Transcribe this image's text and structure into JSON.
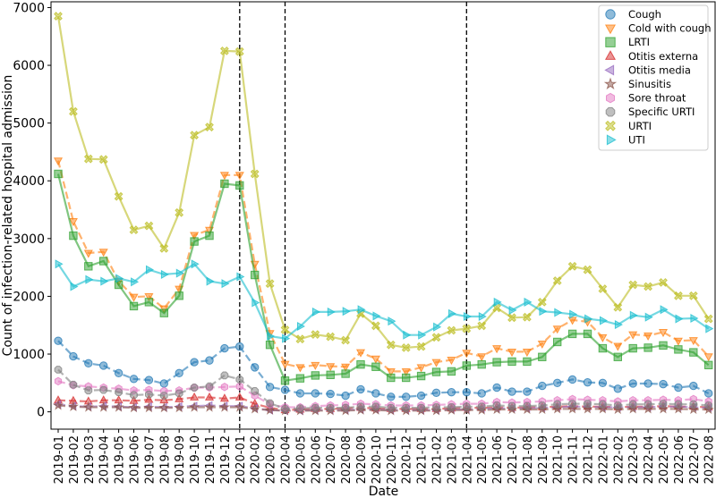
{
  "chart_data": {
    "type": "line",
    "xlabel": "Date",
    "ylabel": "Count of infection-related hospital admission",
    "ylim": [
      -300,
      7100
    ],
    "yticks": [
      0,
      1000,
      2000,
      3000,
      4000,
      5000,
      6000,
      7000
    ],
    "grid": false,
    "legend_position": "top-right",
    "x": [
      "2019-01",
      "2019-02",
      "2019-03",
      "2019-04",
      "2019-05",
      "2019-06",
      "2019-07",
      "2019-08",
      "2019-09",
      "2019-10",
      "2019-11",
      "2019-12",
      "2020-01",
      "2020-02",
      "2020-03",
      "2020-04",
      "2020-05",
      "2020-06",
      "2020-07",
      "2020-08",
      "2020-09",
      "2020-10",
      "2020-11",
      "2020-12",
      "2021-01",
      "2021-02",
      "2021-03",
      "2021-04",
      "2021-05",
      "2021-06",
      "2021-07",
      "2021-08",
      "2021-09",
      "2021-10",
      "2021-11",
      "2021-12",
      "2022-01",
      "2022-02",
      "2022-03",
      "2022-04",
      "2022-05",
      "2022-06",
      "2022-07",
      "2022-08"
    ],
    "vlines": [
      "2020-01",
      "2020-04",
      "2021-04"
    ],
    "series": [
      {
        "name": "Cough",
        "color": "#1f77b4",
        "marker": "circle",
        "dashed": true,
        "values": [
          1230,
          960,
          840,
          800,
          670,
          570,
          550,
          490,
          670,
          860,
          890,
          1100,
          1130,
          770,
          430,
          380,
          320,
          320,
          310,
          280,
          390,
          320,
          260,
          260,
          280,
          330,
          340,
          340,
          320,
          420,
          350,
          350,
          450,
          500,
          560,
          510,
          500,
          400,
          490,
          490,
          480,
          420,
          450,
          320
        ]
      },
      {
        "name": "Cold with cough",
        "color": "#ff7f0e",
        "marker": "triangle-down",
        "dashed": true,
        "values": [
          4350,
          3300,
          2750,
          2770,
          2260,
          1990,
          2000,
          1790,
          2130,
          3060,
          3150,
          4100,
          4100,
          2560,
          1360,
          830,
          770,
          810,
          790,
          780,
          1030,
          920,
          700,
          700,
          770,
          860,
          900,
          1020,
          960,
          1100,
          1040,
          1040,
          1180,
          1440,
          1590,
          1560,
          1290,
          1140,
          1340,
          1320,
          1380,
          1230,
          1240,
          960
        ]
      },
      {
        "name": "LRTI",
        "color": "#2ca02c",
        "marker": "square",
        "dashed": false,
        "values": [
          4120,
          3050,
          2520,
          2610,
          2200,
          1830,
          1900,
          1710,
          2010,
          2950,
          3050,
          3950,
          3920,
          2370,
          1160,
          540,
          580,
          630,
          640,
          660,
          820,
          780,
          590,
          590,
          620,
          690,
          700,
          800,
          820,
          860,
          870,
          870,
          950,
          1210,
          1350,
          1350,
          1100,
          950,
          1100,
          1110,
          1150,
          1080,
          1030,
          810
        ]
      },
      {
        "name": "Otitis externa",
        "color": "#d62728",
        "marker": "triangle-up",
        "dashed": true,
        "values": [
          200,
          190,
          180,
          200,
          200,
          190,
          210,
          200,
          220,
          250,
          250,
          230,
          250,
          140,
          70,
          30,
          40,
          50,
          50,
          60,
          70,
          60,
          50,
          50,
          50,
          50,
          60,
          70,
          70,
          80,
          70,
          80,
          80,
          90,
          100,
          90,
          90,
          80,
          90,
          90,
          100,
          90,
          90,
          80
        ]
      },
      {
        "name": "Otitis media",
        "color": "#9467bd",
        "marker": "triangle-left",
        "dashed": true,
        "values": [
          130,
          100,
          90,
          100,
          90,
          80,
          90,
          80,
          90,
          100,
          110,
          100,
          100,
          60,
          30,
          20,
          20,
          30,
          30,
          30,
          40,
          40,
          30,
          30,
          30,
          30,
          40,
          40,
          50,
          60,
          60,
          60,
          70,
          80,
          90,
          90,
          80,
          80,
          80,
          80,
          90,
          90,
          80,
          70
        ]
      },
      {
        "name": "Sinusitis",
        "color": "#8c564b",
        "marker": "star",
        "dashed": true,
        "values": [
          110,
          90,
          80,
          80,
          80,
          70,
          70,
          70,
          70,
          80,
          80,
          80,
          80,
          50,
          30,
          20,
          20,
          20,
          20,
          20,
          30,
          30,
          20,
          20,
          20,
          20,
          30,
          30,
          30,
          40,
          40,
          40,
          40,
          50,
          50,
          50,
          50,
          40,
          50,
          50,
          50,
          50,
          40,
          40
        ]
      },
      {
        "name": "Sore throat",
        "color": "#e377c2",
        "marker": "hexagon",
        "dashed": true,
        "values": [
          530,
          460,
          440,
          420,
          400,
          370,
          380,
          360,
          370,
          420,
          420,
          430,
          440,
          280,
          130,
          80,
          80,
          100,
          110,
          120,
          140,
          130,
          110,
          110,
          110,
          120,
          130,
          140,
          140,
          170,
          160,
          170,
          180,
          200,
          220,
          210,
          200,
          180,
          200,
          200,
          210,
          200,
          220,
          180
        ]
      },
      {
        "name": "Specific URTI",
        "color": "#7f7f7f",
        "marker": "octagon",
        "dashed": true,
        "values": [
          730,
          470,
          370,
          380,
          340,
          290,
          300,
          280,
          320,
          420,
          440,
          630,
          560,
          360,
          150,
          50,
          60,
          70,
          70,
          70,
          90,
          90,
          70,
          70,
          70,
          80,
          80,
          90,
          90,
          110,
          100,
          100,
          110,
          130,
          140,
          140,
          130,
          110,
          130,
          130,
          140,
          130,
          130,
          110
        ]
      },
      {
        "name": "URTI",
        "color": "#bcbd22",
        "marker": "x-filled",
        "dashed": false,
        "values": [
          6850,
          5200,
          4380,
          4370,
          3730,
          3150,
          3220,
          2830,
          3450,
          4790,
          4930,
          6250,
          6240,
          4120,
          2220,
          1420,
          1260,
          1340,
          1300,
          1240,
          1700,
          1490,
          1160,
          1110,
          1130,
          1290,
          1410,
          1440,
          1490,
          1800,
          1630,
          1640,
          1900,
          2270,
          2520,
          2460,
          2130,
          1810,
          2200,
          2170,
          2240,
          2010,
          2010,
          1610
        ]
      },
      {
        "name": "UTI",
        "color": "#17becf",
        "marker": "triangle-right",
        "dashed": false,
        "values": [
          2560,
          2170,
          2290,
          2260,
          2310,
          2250,
          2460,
          2380,
          2400,
          2560,
          2260,
          2220,
          2340,
          1890,
          1310,
          1270,
          1480,
          1730,
          1730,
          1740,
          1770,
          1660,
          1570,
          1330,
          1330,
          1470,
          1700,
          1650,
          1650,
          1900,
          1760,
          1900,
          1740,
          1720,
          1690,
          1610,
          1580,
          1510,
          1670,
          1640,
          1770,
          1610,
          1620,
          1440
        ]
      }
    ]
  }
}
